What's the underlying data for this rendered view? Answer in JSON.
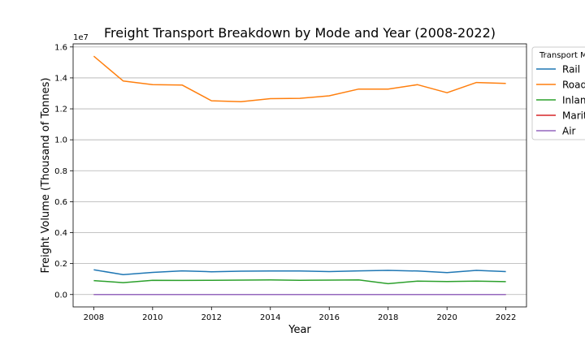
{
  "chart_data": {
    "type": "line",
    "title": "Freight Transport Breakdown by Mode and Year (2008-2022)",
    "xlabel": "Year",
    "ylabel": "Freight Volume (Thousand of Tonnes)",
    "y_offset_label": "1e7",
    "xlim": [
      2007.3,
      2022.7
    ],
    "ylim": [
      -0.08,
      1.62
    ],
    "y_scale_factor": 10000000,
    "xticks": [
      2008,
      2010,
      2012,
      2014,
      2016,
      2018,
      2020,
      2022
    ],
    "xtick_labels": [
      "2008",
      "2010",
      "2012",
      "2014",
      "2016",
      "2018",
      "2020",
      "2022"
    ],
    "yticks": [
      0.0,
      0.2,
      0.4,
      0.6,
      0.8,
      1.0,
      1.2,
      1.4,
      1.6
    ],
    "ytick_labels": [
      "0.0",
      "0.2",
      "0.4",
      "0.6",
      "0.8",
      "1.0",
      "1.2",
      "1.4",
      "1.6"
    ],
    "grid": "y",
    "x": [
      2008,
      2009,
      2010,
      2011,
      2012,
      2013,
      2014,
      2015,
      2016,
      2017,
      2018,
      2019,
      2020,
      2021,
      2022
    ],
    "legend": {
      "title": "Transport Mode",
      "placement": "outside right, top"
    },
    "series": [
      {
        "name": "Rail",
        "color": "#1f77b4",
        "values": [
          1600000,
          1290000,
          1430000,
          1530000,
          1470000,
          1510000,
          1520000,
          1520000,
          1480000,
          1530000,
          1560000,
          1520000,
          1420000,
          1560000,
          1480000
        ]
      },
      {
        "name": "Road",
        "color": "#ff7f0e",
        "values": [
          15400000,
          13800000,
          13560000,
          13540000,
          12520000,
          12460000,
          12660000,
          12680000,
          12840000,
          13280000,
          13280000,
          13560000,
          13040000,
          13700000,
          13640000
        ]
      },
      {
        "name": "Inland Waterways",
        "color": "#2ca02c",
        "values": [
          900000,
          770000,
          920000,
          910000,
          920000,
          930000,
          940000,
          920000,
          930000,
          940000,
          700000,
          870000,
          840000,
          870000,
          830000
        ]
      },
      {
        "name": "Maritime",
        "color": "#d62728",
        "values": [
          0,
          0,
          0,
          0,
          0,
          0,
          0,
          0,
          0,
          0,
          0,
          0,
          0,
          0,
          0
        ]
      },
      {
        "name": "Air",
        "color": "#9467bd",
        "values": [
          0,
          0,
          0,
          0,
          0,
          0,
          0,
          0,
          0,
          0,
          0,
          0,
          0,
          0,
          0
        ]
      }
    ]
  }
}
